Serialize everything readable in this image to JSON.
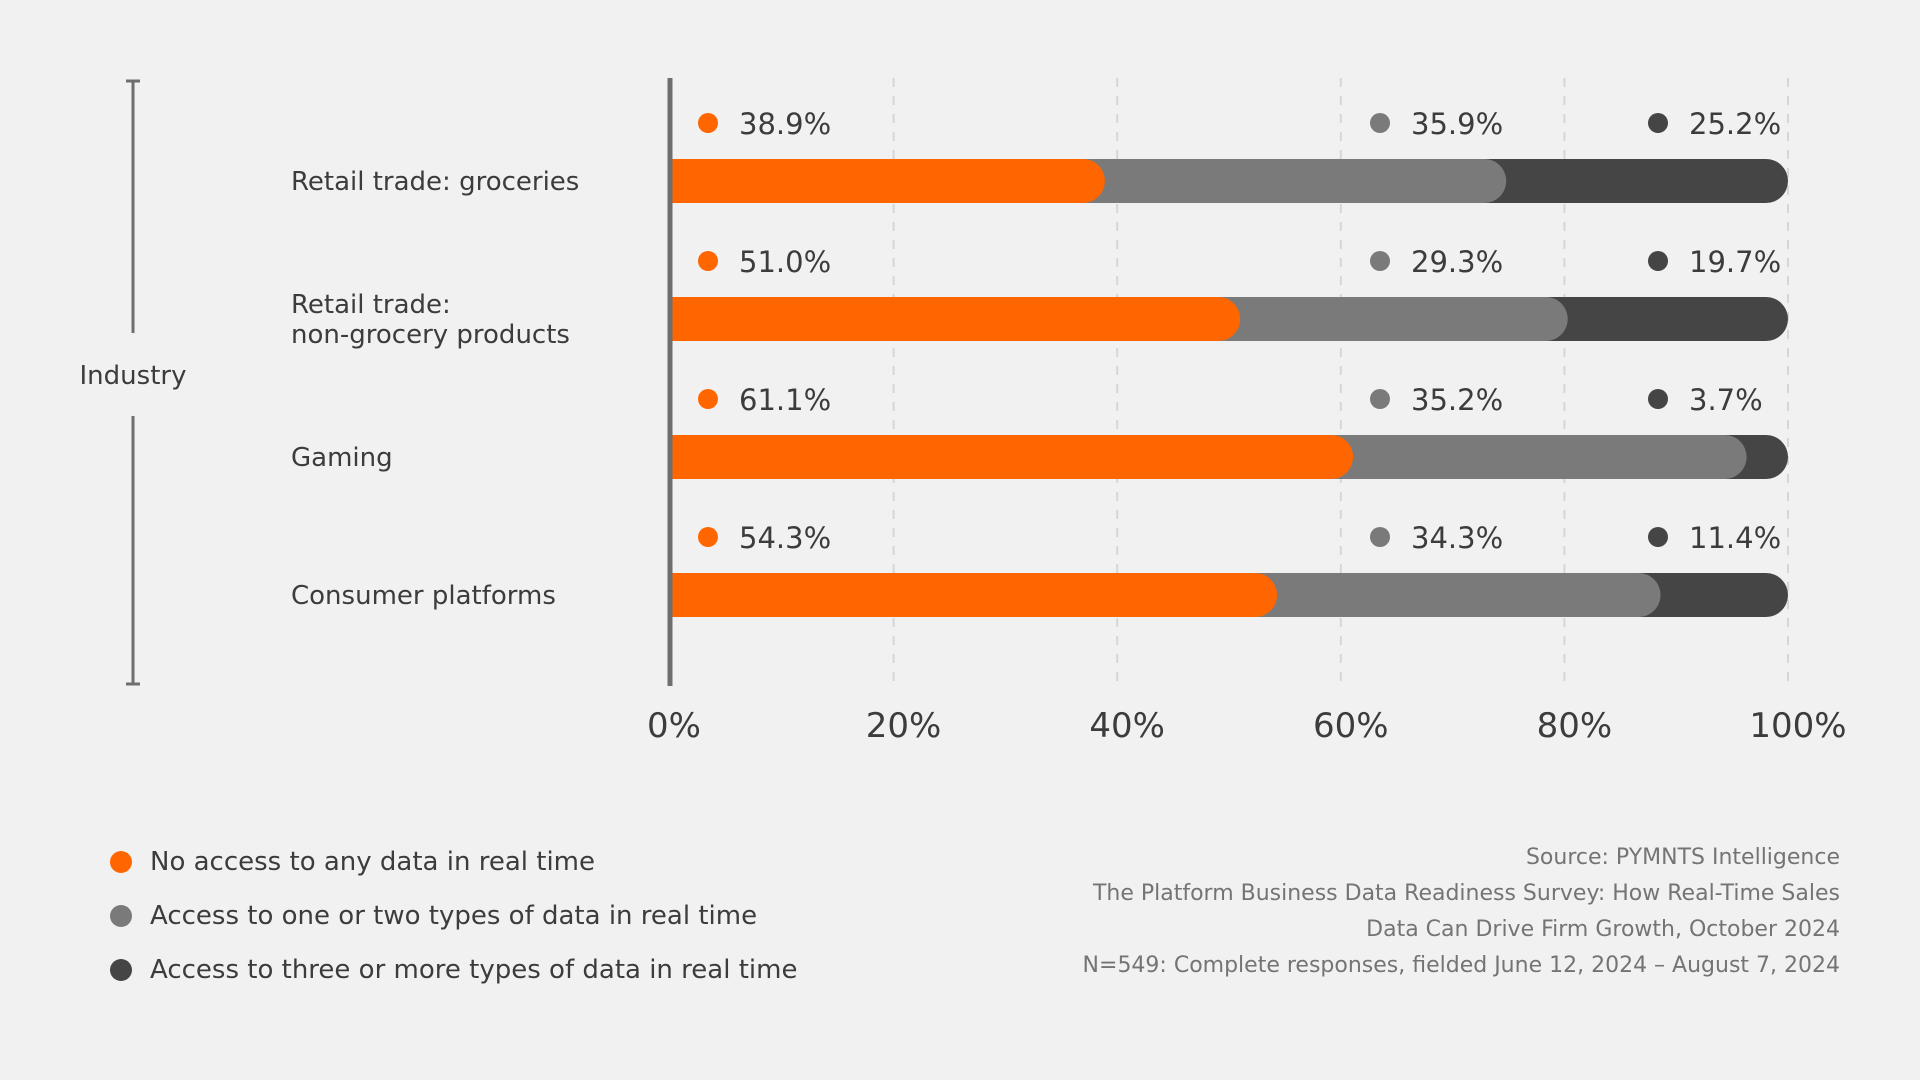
{
  "chart_data": {
    "type": "bar",
    "orientation": "horizontal",
    "stacked": true,
    "y_group_label": "Industry",
    "categories": [
      [
        "Retail trade: groceries"
      ],
      [
        "Retail trade:",
        "non-grocery products"
      ],
      [
        "Gaming"
      ],
      [
        "Consumer platforms"
      ]
    ],
    "series": [
      {
        "name": "No access to any data in real time",
        "color": "#ff6600",
        "values": [
          38.9,
          51.0,
          61.1,
          54.3
        ],
        "labels": [
          "38.9%",
          "51.0%",
          "61.1%",
          "54.3%"
        ]
      },
      {
        "name": "Access to one or two types of data in real time",
        "color": "#7a7a7a",
        "values": [
          35.9,
          29.3,
          35.2,
          34.3
        ],
        "labels": [
          "35.9%",
          "29.3%",
          "35.2%",
          "34.3%"
        ]
      },
      {
        "name": "Access to three or more types of data in real time",
        "color": "#454545",
        "values": [
          25.2,
          19.7,
          3.7,
          11.4
        ],
        "labels": [
          "25.2%",
          "19.7%",
          "3.7%",
          "11.4%"
        ]
      }
    ],
    "xlim": [
      0,
      100
    ],
    "x_ticks": [
      0,
      20,
      40,
      60,
      80,
      100
    ],
    "x_tick_labels": [
      "0%",
      "20%",
      "40%",
      "60%",
      "80%",
      "100%"
    ],
    "grid": "vertical dashed",
    "legend_position": "bottom-left"
  },
  "source": {
    "lines": [
      "Source: PYMNTS Intelligence",
      "The Platform Business Data Readiness Survey: How Real-Time Sales",
      "Data Can Drive Firm Growth, October 2024",
      "N=549: Complete responses, fielded June 12, 2024 – August 7, 2024"
    ]
  }
}
